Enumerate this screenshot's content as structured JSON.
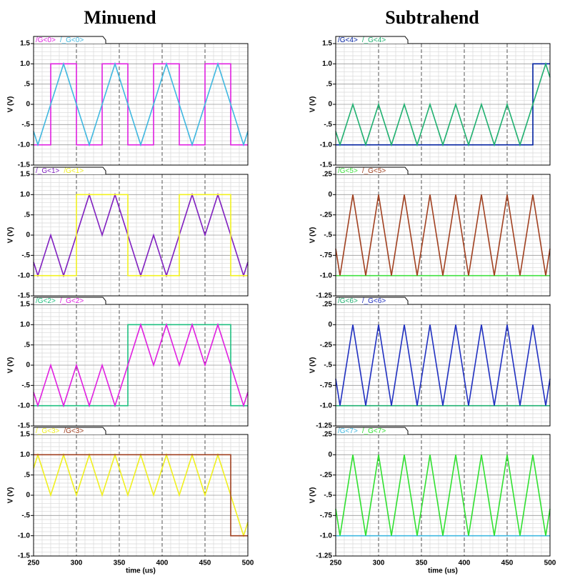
{
  "headers": [
    "Minuend",
    "Subtrahend"
  ],
  "chart_data": [
    {
      "type": "line",
      "ylabel": "V (V)",
      "xlim": [
        250,
        500
      ],
      "xticks": [
        250,
        300,
        350,
        400,
        450,
        500
      ],
      "ylim": [
        -1.5,
        1.5
      ],
      "yticks": [
        1.5,
        {
          "value": 1,
          "label": "1.0"
        },
        {
          "value": 0.5,
          "label": ".5"
        },
        0,
        {
          "value": -0.5,
          "label": "-.5"
        },
        {
          "value": -1,
          "label": "-1.0"
        },
        -1.5
      ],
      "grid": true,
      "series": [
        {
          "name": "/G<0>",
          "color": "#e020e0",
          "x": [
            250,
            270,
            270,
            300,
            300,
            330,
            330,
            360,
            360,
            390,
            390,
            420,
            420,
            450,
            450,
            480,
            480,
            500
          ],
          "values": [
            -1,
            -1,
            1,
            1,
            -1,
            -1,
            1,
            1,
            -1,
            -1,
            1,
            1,
            -1,
            -1,
            1,
            1,
            -1,
            -1
          ]
        },
        {
          "name": "/_G<0>",
          "color": "#40b8e0",
          "x": [
            250,
            255,
            285,
            315,
            345,
            375,
            405,
            435,
            465,
            495,
            500
          ],
          "values": [
            -0.667,
            -1,
            1,
            -1,
            1,
            -1,
            1,
            -1,
            1,
            -1,
            -0.667
          ]
        }
      ]
    },
    {
      "type": "line",
      "ylabel": "V (V)",
      "xlim": [
        250,
        500
      ],
      "xticks": [
        250,
        300,
        350,
        400,
        450,
        500
      ],
      "ylim": [
        -1.5,
        1.5
      ],
      "yticks": [
        1.5,
        {
          "value": 1,
          "label": "1.0"
        },
        {
          "value": 0.5,
          "label": ".5"
        },
        0,
        {
          "value": -0.5,
          "label": "-.5"
        },
        {
          "value": -1,
          "label": "-1.0"
        },
        -1.5
      ],
      "grid": true,
      "series": [
        {
          "name": "/_G<1>",
          "color": "#8020c0",
          "x": [
            250,
            255,
            270,
            285,
            315,
            330,
            345,
            375,
            390,
            405,
            435,
            450,
            465,
            495,
            500
          ],
          "values": [
            -0.667,
            -1,
            0,
            -1,
            1,
            0,
            1,
            -1,
            0,
            -1,
            1,
            0,
            1,
            -1,
            -0.667
          ]
        },
        {
          "name": "/G<1>",
          "color": "#f0f020",
          "x": [
            250,
            300,
            300,
            360,
            360,
            420,
            420,
            480,
            480,
            500
          ],
          "values": [
            -1,
            -1,
            1,
            1,
            -1,
            -1,
            1,
            1,
            -1,
            -1
          ]
        }
      ]
    },
    {
      "type": "line",
      "ylabel": "V (V)",
      "xlim": [
        250,
        500
      ],
      "xticks": [
        250,
        300,
        350,
        400,
        450,
        500
      ],
      "ylim": [
        -1.5,
        1.5
      ],
      "yticks": [
        1.5,
        {
          "value": 1,
          "label": "1.0"
        },
        {
          "value": 0.5,
          "label": ".5"
        },
        0,
        {
          "value": -0.5,
          "label": "-.5"
        },
        {
          "value": -1,
          "label": "-1.0"
        },
        -1.5
      ],
      "grid": true,
      "series": [
        {
          "name": "/G<2>",
          "color": "#20c080",
          "x": [
            250,
            360,
            360,
            480,
            480,
            500
          ],
          "values": [
            -1,
            -1,
            1,
            1,
            -1,
            -1
          ]
        },
        {
          "name": "/_G<2>",
          "color": "#e020e0",
          "x": [
            250,
            255,
            270,
            285,
            300,
            315,
            330,
            345,
            375,
            390,
            405,
            420,
            435,
            450,
            465,
            495,
            500
          ],
          "values": [
            -0.667,
            -1,
            0,
            -1,
            0,
            -1,
            0,
            -1,
            1,
            0,
            1,
            0,
            1,
            0,
            1,
            -1,
            -0.667
          ]
        }
      ]
    },
    {
      "type": "line",
      "ylabel": "V (V)",
      "xlabel": "time (us)",
      "xlim": [
        250,
        500
      ],
      "xticks": [
        250,
        300,
        350,
        400,
        450,
        500
      ],
      "ylim": [
        -1.5,
        1.5
      ],
      "yticks": [
        1.5,
        {
          "value": 1,
          "label": "1.0"
        },
        {
          "value": 0.5,
          "label": ".5"
        },
        0,
        {
          "value": -0.5,
          "label": "-.5"
        },
        {
          "value": -1,
          "label": "-1.0"
        },
        -1.5
      ],
      "grid": true,
      "series": [
        {
          "name": "/_G<3>",
          "color": "#f0f020",
          "x": [
            250,
            255,
            270,
            285,
            300,
            315,
            330,
            345,
            360,
            375,
            390,
            405,
            420,
            435,
            450,
            465,
            495,
            500
          ],
          "values": [
            0.667,
            1,
            0,
            1,
            0,
            1,
            0,
            1,
            0,
            1,
            0,
            1,
            0,
            1,
            0,
            1,
            -1,
            -0.667
          ]
        },
        {
          "name": "/G<3>",
          "color": "#a04020",
          "x": [
            250,
            480,
            480,
            500
          ],
          "values": [
            1,
            1,
            -1,
            -1
          ]
        }
      ]
    },
    {
      "type": "line",
      "ylabel": "V (V)",
      "xlim": [
        250,
        500
      ],
      "xticks": [
        250,
        300,
        350,
        400,
        450,
        500
      ],
      "ylim": [
        -1.5,
        1.5
      ],
      "yticks": [
        1.5,
        {
          "value": 1,
          "label": "1.0"
        },
        {
          "value": 0.5,
          "label": ".5"
        },
        0,
        {
          "value": -0.5,
          "label": "-.5"
        },
        {
          "value": -1,
          "label": "-1.0"
        },
        -1.5
      ],
      "grid": true,
      "series": [
        {
          "name": "/G<4>",
          "color": "#0020a0",
          "x": [
            250,
            480,
            480,
            500
          ],
          "values": [
            -1,
            -1,
            1,
            1
          ]
        },
        {
          "name": "/_G<4>",
          "color": "#20b070",
          "x": [
            250,
            255,
            270,
            285,
            300,
            315,
            330,
            345,
            360,
            375,
            390,
            405,
            420,
            435,
            450,
            465,
            495,
            500
          ],
          "values": [
            -0.667,
            -1,
            0,
            -1,
            0,
            -1,
            0,
            -1,
            0,
            -1,
            0,
            -1,
            0,
            -1,
            0,
            -1,
            1,
            0.667
          ]
        }
      ]
    },
    {
      "type": "line",
      "ylabel": "V (V)",
      "xlim": [
        250,
        500
      ],
      "xticks": [
        250,
        300,
        350,
        400,
        450,
        500
      ],
      "ylim": [
        -1.25,
        0.25
      ],
      "yticks": [
        {
          "value": 0.25,
          "label": ".25"
        },
        0,
        {
          "value": -0.25,
          "label": "-.25"
        },
        {
          "value": -0.5,
          "label": "-.5"
        },
        {
          "value": -0.75,
          "label": "-.75"
        },
        {
          "value": -1,
          "label": "-1.0"
        },
        -1.25
      ],
      "grid": true,
      "series": [
        {
          "name": "/G<5>",
          "color": "#40e040",
          "x": [
            250,
            500
          ],
          "values": [
            -1,
            -1
          ]
        },
        {
          "name": "/_G<5>",
          "color": "#a04020",
          "x": [
            250,
            255,
            270,
            285,
            300,
            315,
            330,
            345,
            360,
            375,
            390,
            405,
            420,
            435,
            450,
            465,
            480,
            495,
            500
          ],
          "values": [
            -0.667,
            -1,
            0,
            -1,
            0,
            -1,
            0,
            -1,
            0,
            -1,
            0,
            -1,
            0,
            -1,
            0,
            -1,
            0,
            -1,
            -0.667
          ]
        }
      ]
    },
    {
      "type": "line",
      "ylabel": "V (V)",
      "xlim": [
        250,
        500
      ],
      "xticks": [
        250,
        300,
        350,
        400,
        450,
        500
      ],
      "ylim": [
        -1.25,
        0.25
      ],
      "yticks": [
        {
          "value": 0.25,
          "label": ".25"
        },
        0,
        {
          "value": -0.25,
          "label": "-.25"
        },
        {
          "value": -0.5,
          "label": "-.5"
        },
        {
          "value": -0.75,
          "label": "-.75"
        },
        {
          "value": -1,
          "label": "-1.0"
        },
        -1.25
      ],
      "grid": true,
      "series": [
        {
          "name": "/G<6>",
          "color": "#20b070",
          "x": [
            250,
            500
          ],
          "values": [
            -1,
            -1
          ]
        },
        {
          "name": "/_G<6>",
          "color": "#2030c0",
          "x": [
            250,
            255,
            270,
            285,
            300,
            315,
            330,
            345,
            360,
            375,
            390,
            405,
            420,
            435,
            450,
            465,
            480,
            495,
            500
          ],
          "values": [
            -0.667,
            -1,
            0,
            -1,
            0,
            -1,
            0,
            -1,
            0,
            -1,
            0,
            -1,
            0,
            -1,
            0,
            -1,
            0,
            -1,
            -0.667
          ]
        }
      ]
    },
    {
      "type": "line",
      "ylabel": "V (V)",
      "xlabel": "time (us)",
      "xlim": [
        250,
        500
      ],
      "xticks": [
        250,
        300,
        350,
        400,
        450,
        500
      ],
      "ylim": [
        -1.25,
        0.25
      ],
      "yticks": [
        {
          "value": 0.25,
          "label": ".25"
        },
        0,
        {
          "value": -0.25,
          "label": "-.25"
        },
        {
          "value": -0.5,
          "label": "-.5"
        },
        {
          "value": -0.75,
          "label": "-.75"
        },
        {
          "value": -1,
          "label": "-1.0"
        },
        -1.25
      ],
      "grid": true,
      "series": [
        {
          "name": "/G<7>",
          "color": "#40b8e0",
          "x": [
            250,
            500
          ],
          "values": [
            -1,
            -1
          ]
        },
        {
          "name": "/_G<7>",
          "color": "#30e030",
          "x": [
            250,
            255,
            270,
            285,
            300,
            315,
            330,
            345,
            360,
            375,
            390,
            405,
            420,
            435,
            450,
            465,
            480,
            495,
            500
          ],
          "values": [
            -0.667,
            -1,
            0,
            -1,
            0,
            -1,
            0,
            -1,
            0,
            -1,
            0,
            -1,
            0,
            -1,
            0,
            -1,
            0,
            -1,
            -0.667
          ]
        }
      ]
    }
  ]
}
